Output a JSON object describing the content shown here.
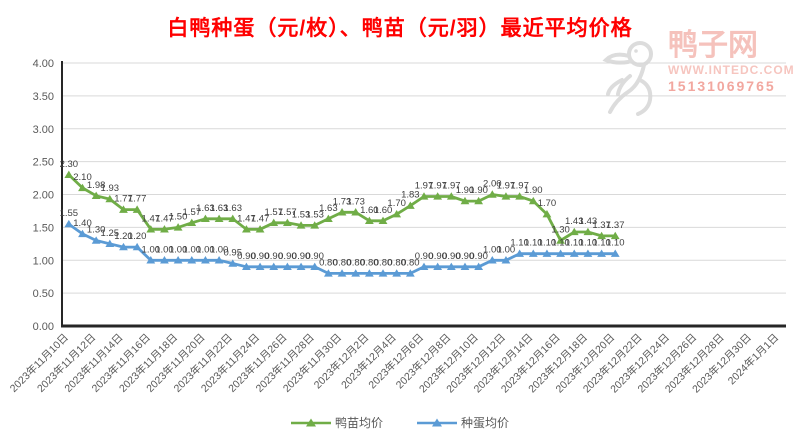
{
  "title": "白鸭种蛋（元/枚）、鸭苗（元/羽）最近平均价格",
  "watermark": {
    "site_name": "鸭子网",
    "url": "WWW.INTEDC.COM",
    "phone": "15131069765",
    "logo_icon": "duck-logo"
  },
  "chart_data": {
    "type": "line",
    "title": "白鸭种蛋（元/枚）、鸭苗（元/羽）最近平均价格",
    "ylim": [
      0,
      4
    ],
    "y_tick_labels": [
      "4.00",
      "3.50",
      "3.00",
      "2.50",
      "2.00",
      "1.50",
      "1.00",
      "0.50",
      "0.00"
    ],
    "grid": true,
    "legend_position": "bottom",
    "x_tick_labels": [
      "2023年11月10日",
      "2023年11月12日",
      "2023年11月14日",
      "2023年11月16日",
      "2023年11月18日",
      "2023年11月20日",
      "2023年11月22日",
      "2023年11月24日",
      "2023年11月26日",
      "2023年11月28日",
      "2023年11月30日",
      "2023年12月2日",
      "2023年12月4日",
      "2023年12月6日",
      "2023年12月8日",
      "2023年12月10日",
      "2023年12月12日",
      "2023年12月14日",
      "2023年12月16日",
      "2023年12月18日",
      "2023年12月20日",
      "2023年12月22日",
      "2023年12月24日",
      "2023年12月26日",
      "2023年12月28日",
      "2023年12月30日",
      "2024年1月1日"
    ],
    "series": [
      {
        "name": "鸭苗均价",
        "color": "#70AD47",
        "marker": "triangle",
        "values": [
          2.3,
          2.1,
          1.98,
          1.93,
          1.77,
          1.77,
          1.47,
          1.47,
          1.5,
          1.57,
          1.63,
          1.63,
          1.63,
          1.47,
          1.47,
          1.57,
          1.57,
          1.53,
          1.53,
          1.63,
          1.73,
          1.73,
          1.6,
          1.6,
          1.7,
          1.83,
          1.97,
          1.97,
          1.97,
          1.9,
          1.9,
          2.0,
          1.97,
          1.97,
          1.9,
          1.7,
          1.3,
          1.43,
          1.43,
          1.37,
          1.37
        ]
      },
      {
        "name": "种蛋均价",
        "color": "#5B9BD5",
        "marker": "triangle",
        "values": [
          1.55,
          1.4,
          1.3,
          1.25,
          1.2,
          1.2,
          1.0,
          1.0,
          1.0,
          1.0,
          1.0,
          1.0,
          0.95,
          0.9,
          0.9,
          0.9,
          0.9,
          0.9,
          0.9,
          0.8,
          0.8,
          0.8,
          0.8,
          0.8,
          0.8,
          0.8,
          0.9,
          0.9,
          0.9,
          0.9,
          0.9,
          1.0,
          1.0,
          1.1,
          1.1,
          1.1,
          1.1,
          1.1,
          1.1,
          1.1,
          1.1
        ]
      }
    ]
  },
  "colors": {
    "title": "#FF0000",
    "axis_text": "#595959",
    "data_label": "#404040",
    "gridline": "#D9D9D9",
    "axis_line": "#262626"
  }
}
